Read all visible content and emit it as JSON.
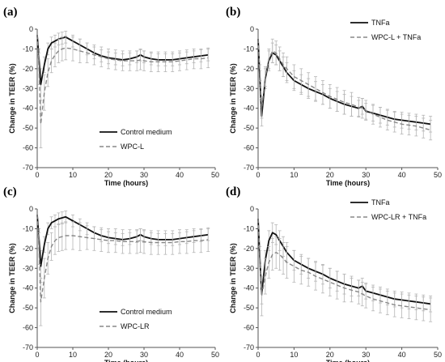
{
  "chart_data": [
    {
      "type": "line",
      "panel_label": "(a)",
      "xlabel": "Time (hours)",
      "ylabel": "Change in TEER (%)",
      "xlim": [
        0,
        50
      ],
      "ylim": [
        -70,
        0
      ],
      "xticks": [
        0,
        10,
        20,
        30,
        40,
        50
      ],
      "yticks": [
        0,
        -10,
        -20,
        -30,
        -40,
        -50,
        -60,
        -70
      ],
      "legend_position": "bottom-right",
      "series": [
        {
          "name": "Control medium",
          "style": "solid",
          "x": [
            0,
            0.5,
            1,
            2,
            3,
            4,
            5,
            6,
            7,
            8,
            10,
            12,
            14,
            16,
            18,
            20,
            22,
            24,
            26,
            28,
            29,
            30,
            32,
            34,
            36,
            38,
            40,
            42,
            44,
            46,
            48
          ],
          "y": [
            -3,
            -15,
            -28,
            -18,
            -10,
            -7,
            -6,
            -5,
            -4.5,
            -4,
            -6,
            -8,
            -10,
            -12,
            -13.5,
            -14.5,
            -15,
            -15.5,
            -15,
            -14,
            -13,
            -14,
            -15,
            -15.5,
            -15.5,
            -15.5,
            -15,
            -14.5,
            -14,
            -13.5,
            -13
          ],
          "err": [
            0,
            5,
            8,
            4,
            3,
            3,
            3,
            3,
            3,
            3,
            3,
            3,
            3,
            3,
            3,
            3,
            3,
            3,
            3,
            3,
            3,
            3,
            3,
            3,
            3,
            3,
            3,
            3,
            3,
            3,
            3
          ]
        },
        {
          "name": "WPC-L",
          "style": "dashed",
          "x": [
            0,
            0.5,
            1,
            2,
            3,
            4,
            5,
            6,
            7,
            8,
            10,
            12,
            14,
            16,
            18,
            20,
            22,
            24,
            26,
            28,
            29,
            30,
            32,
            34,
            36,
            38,
            40,
            42,
            44,
            46,
            48
          ],
          "y": [
            -3,
            -20,
            -48,
            -32,
            -22,
            -16,
            -13,
            -11,
            -10,
            -9.5,
            -10,
            -11,
            -12,
            -13,
            -14,
            -15,
            -15.5,
            -16,
            -16,
            -16,
            -15.5,
            -16,
            -16.5,
            -16.5,
            -16.5,
            -16.5,
            -16,
            -15.5,
            -15,
            -15,
            -14.5
          ],
          "err": [
            0,
            8,
            12,
            9,
            7,
            6,
            6,
            6,
            6,
            6,
            6,
            6,
            5,
            5,
            5,
            5,
            5,
            5,
            5,
            5,
            5,
            5,
            5,
            5,
            5,
            5,
            5,
            5,
            5,
            5,
            5
          ]
        }
      ]
    },
    {
      "type": "line",
      "panel_label": "(b)",
      "xlabel": "Time (hours)",
      "ylabel": "Change in TEER (%)",
      "xlim": [
        0,
        50
      ],
      "ylim": [
        -70,
        0
      ],
      "xticks": [
        0,
        10,
        20,
        30,
        40,
        50
      ],
      "yticks": [
        0,
        -10,
        -20,
        -30,
        -40,
        -50,
        -60,
        -70
      ],
      "legend_position": "top-right",
      "series": [
        {
          "name": "TNFa",
          "style": "solid",
          "x": [
            0,
            0.5,
            1,
            2,
            3,
            4,
            5,
            6,
            7,
            8,
            10,
            12,
            14,
            16,
            18,
            20,
            22,
            24,
            26,
            28,
            29,
            30,
            32,
            34,
            36,
            38,
            40,
            42,
            44,
            46,
            48
          ],
          "y": [
            -5,
            -25,
            -44,
            -25,
            -16,
            -12,
            -13,
            -16,
            -19,
            -22,
            -26,
            -28,
            -30,
            -31.5,
            -33,
            -35,
            -36.5,
            -38,
            -39,
            -40,
            -39,
            -41.5,
            -42.5,
            -43.5,
            -44.5,
            -45.5,
            -46,
            -46.5,
            -47,
            -47.5,
            -48
          ],
          "err": [
            0,
            4,
            5,
            5,
            5,
            5,
            5,
            5,
            5,
            5,
            5,
            5,
            5,
            5,
            5,
            5,
            5,
            5,
            5,
            4,
            4,
            4,
            4,
            4,
            4,
            4,
            4,
            4,
            4,
            4,
            4
          ]
        },
        {
          "name": "WPC-L + TNFa",
          "style": "dashed",
          "x": [
            0,
            0.5,
            1,
            2,
            3,
            4,
            5,
            6,
            7,
            8,
            10,
            12,
            14,
            16,
            18,
            20,
            22,
            24,
            26,
            28,
            29,
            30,
            32,
            34,
            36,
            38,
            40,
            42,
            44,
            46,
            48
          ],
          "y": [
            -5,
            -22,
            -40,
            -24,
            -15,
            -11,
            -12,
            -15,
            -18,
            -20,
            -24,
            -26,
            -28,
            -30,
            -32,
            -34,
            -35.5,
            -37,
            -38,
            -39.5,
            -40,
            -41,
            -43,
            -44.5,
            -46,
            -47,
            -48,
            -48.5,
            -49,
            -50,
            -51
          ],
          "err": [
            0,
            4,
            5,
            5,
            5,
            6,
            6,
            6,
            6,
            6,
            6,
            6,
            6,
            6,
            6,
            6,
            6,
            6,
            6,
            5,
            5,
            5,
            5,
            5,
            5,
            5,
            5,
            5,
            5,
            5,
            5
          ]
        }
      ]
    },
    {
      "type": "line",
      "panel_label": "(c)",
      "xlabel": "Time (hours)",
      "ylabel": "Change in TEER (%)",
      "xlim": [
        0,
        50
      ],
      "ylim": [
        -70,
        0
      ],
      "xticks": [
        0,
        10,
        20,
        30,
        40,
        50
      ],
      "yticks": [
        0,
        -10,
        -20,
        -30,
        -40,
        -50,
        -60,
        -70
      ],
      "legend_position": "bottom-right",
      "series": [
        {
          "name": "Control medium",
          "style": "solid",
          "x": [
            0,
            0.5,
            1,
            2,
            3,
            4,
            5,
            6,
            7,
            8,
            10,
            12,
            14,
            16,
            18,
            20,
            22,
            24,
            26,
            28,
            29,
            30,
            32,
            34,
            36,
            38,
            40,
            42,
            44,
            46,
            48
          ],
          "y": [
            -3,
            -15,
            -29,
            -18,
            -10,
            -7,
            -6,
            -5,
            -4.5,
            -4,
            -6,
            -8,
            -10,
            -12,
            -13.5,
            -14.5,
            -15,
            -15.5,
            -15,
            -14,
            -13,
            -14,
            -15,
            -15.5,
            -15.5,
            -15.5,
            -15,
            -14.5,
            -14,
            -13.5,
            -13
          ],
          "err": [
            0,
            5,
            8,
            4,
            3,
            3,
            3,
            3,
            3,
            3,
            3,
            3,
            3,
            3,
            3,
            3,
            3,
            3,
            3,
            3,
            3,
            3,
            3,
            3,
            3,
            3,
            3,
            3,
            3,
            3,
            3
          ]
        },
        {
          "name": "WPC-LR",
          "style": "dashed",
          "x": [
            0,
            0.5,
            1,
            2,
            3,
            4,
            5,
            6,
            7,
            8,
            10,
            12,
            14,
            16,
            18,
            20,
            22,
            24,
            26,
            28,
            29,
            30,
            32,
            34,
            36,
            38,
            40,
            42,
            44,
            46,
            48
          ],
          "y": [
            -3,
            -20,
            -47,
            -35,
            -25,
            -19,
            -16,
            -14.5,
            -14,
            -13.5,
            -13.5,
            -14,
            -14.5,
            -15,
            -15.5,
            -16,
            -16,
            -16.5,
            -16.5,
            -16.5,
            -16,
            -16.5,
            -17,
            -17,
            -17,
            -17,
            -16.5,
            -16.5,
            -16,
            -16,
            -15.5
          ],
          "err": [
            0,
            8,
            12,
            10,
            8,
            7,
            7,
            7,
            7,
            7,
            7,
            7,
            6,
            6,
            6,
            6,
            6,
            6,
            6,
            6,
            6,
            6,
            6,
            6,
            6,
            6,
            6,
            6,
            6,
            6,
            6
          ]
        }
      ]
    },
    {
      "type": "line",
      "panel_label": "(d)",
      "xlabel": "Time (hours)",
      "ylabel": "Change in TEER (%)",
      "xlim": [
        0,
        50
      ],
      "ylim": [
        -70,
        0
      ],
      "xticks": [
        0,
        10,
        20,
        30,
        40,
        50
      ],
      "yticks": [
        0,
        -10,
        -20,
        -30,
        -40,
        -50,
        -60,
        -70
      ],
      "legend_position": "top-right",
      "series": [
        {
          "name": "TNFa",
          "style": "solid",
          "x": [
            0,
            0.5,
            1,
            2,
            3,
            4,
            5,
            6,
            7,
            8,
            10,
            12,
            14,
            16,
            18,
            20,
            22,
            24,
            26,
            28,
            29,
            30,
            32,
            34,
            36,
            38,
            40,
            42,
            44,
            46,
            48
          ],
          "y": [
            -5,
            -25,
            -43,
            -26,
            -16,
            -12,
            -13,
            -16,
            -19,
            -22,
            -26,
            -28,
            -30,
            -31.5,
            -33,
            -35,
            -36.5,
            -38,
            -39,
            -40,
            -39,
            -41.5,
            -42.5,
            -43.5,
            -44.5,
            -45.5,
            -46,
            -46.5,
            -47,
            -47.5,
            -48
          ],
          "err": [
            0,
            4,
            5,
            5,
            5,
            5,
            5,
            5,
            5,
            5,
            5,
            5,
            5,
            5,
            5,
            5,
            5,
            5,
            5,
            4,
            4,
            4,
            4,
            4,
            4,
            4,
            4,
            4,
            4,
            4,
            4
          ]
        },
        {
          "name": "WPC-LR + TNFa",
          "style": "dashed",
          "x": [
            0,
            0.5,
            1,
            2,
            3,
            4,
            5,
            6,
            7,
            8,
            10,
            12,
            14,
            16,
            18,
            20,
            22,
            24,
            26,
            28,
            29,
            30,
            32,
            34,
            36,
            38,
            40,
            42,
            44,
            46,
            48
          ],
          "y": [
            -5,
            -24,
            -44,
            -34,
            -27,
            -23,
            -22,
            -23,
            -25,
            -27,
            -29,
            -31,
            -32,
            -34,
            -35.5,
            -37,
            -38.5,
            -40,
            -41,
            -42,
            -43,
            -44,
            -45.5,
            -46.5,
            -47.5,
            -48.5,
            -49,
            -49.5,
            -50,
            -50.5,
            -51
          ],
          "err": [
            0,
            5,
            10,
            9,
            8,
            8,
            8,
            8,
            8,
            8,
            8,
            7,
            7,
            7,
            7,
            7,
            7,
            7,
            6,
            6,
            6,
            6,
            6,
            6,
            6,
            6,
            6,
            6,
            6,
            6,
            6
          ]
        }
      ]
    }
  ]
}
